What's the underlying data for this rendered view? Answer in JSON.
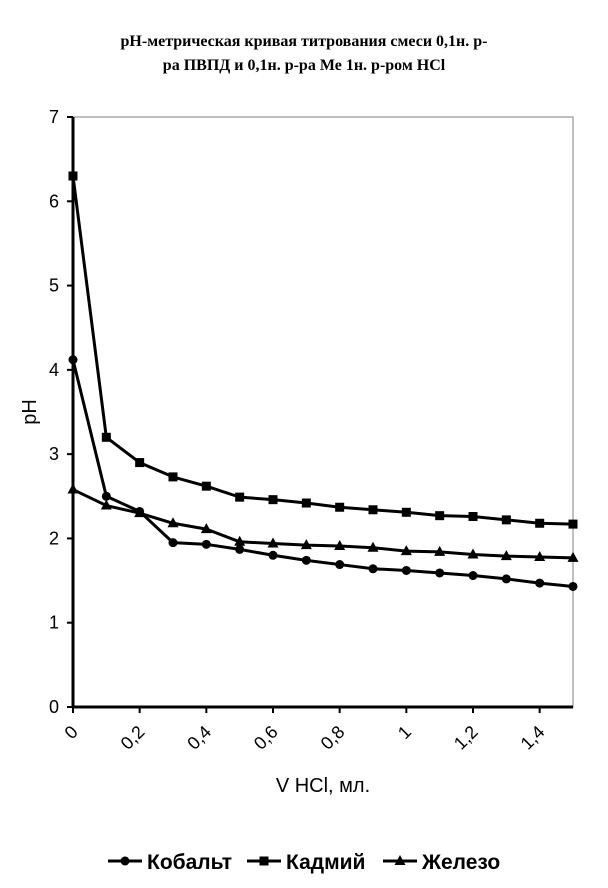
{
  "chart_data": {
    "type": "line",
    "title_line1": "рН-метрическая кривая титрования смеси 0,1н. р-",
    "title_line2": "ра  ПВПД и 0,1н. р-ра Ме 1н. р-ром HCl",
    "xlabel": "V HCl, мл.",
    "ylabel": "pH",
    "xlim": [
      0,
      1.5
    ],
    "ylim": [
      0,
      7
    ],
    "x_ticks": [
      0,
      0.2,
      0.4,
      0.6,
      0.8,
      1.0,
      1.2,
      1.4
    ],
    "x_tick_labels": [
      "0",
      "0,2",
      "0,4",
      "0,6",
      "0,8",
      "1",
      "1,2",
      "1,4"
    ],
    "y_ticks": [
      0,
      1,
      2,
      3,
      4,
      5,
      6,
      7
    ],
    "y_tick_labels": [
      "0",
      "1",
      "2",
      "3",
      "4",
      "5",
      "6",
      "7"
    ],
    "grid": false,
    "legend_position": "bottom",
    "x": [
      0,
      0.1,
      0.2,
      0.3,
      0.4,
      0.5,
      0.6,
      0.7,
      0.8,
      0.9,
      1.0,
      1.1,
      1.2,
      1.3,
      1.4,
      1.5
    ],
    "series": [
      {
        "name": "Кобальт",
        "marker": "circle",
        "values": [
          4.12,
          2.5,
          2.32,
          1.95,
          1.93,
          1.87,
          1.8,
          1.74,
          1.69,
          1.64,
          1.62,
          1.59,
          1.56,
          1.52,
          1.47,
          1.43
        ]
      },
      {
        "name": "Кадмий",
        "marker": "square",
        "values": [
          6.3,
          3.2,
          2.9,
          2.73,
          2.62,
          2.49,
          2.46,
          2.42,
          2.37,
          2.34,
          2.31,
          2.27,
          2.26,
          2.22,
          2.18,
          2.17
        ]
      },
      {
        "name": "Железо",
        "marker": "triangle",
        "values": [
          2.58,
          2.39,
          2.3,
          2.18,
          2.11,
          1.96,
          1.94,
          1.92,
          1.91,
          1.89,
          1.85,
          1.84,
          1.81,
          1.79,
          1.78,
          1.77
        ]
      }
    ],
    "colors": {
      "line": "#000000",
      "frame": "#808080",
      "background": "#ffffff"
    }
  }
}
